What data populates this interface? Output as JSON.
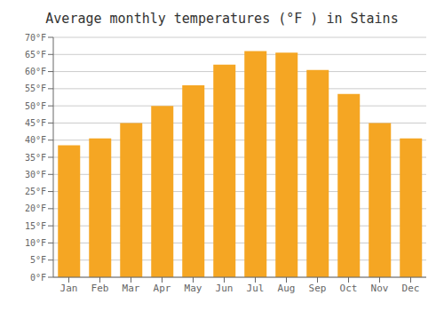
{
  "chart_data": {
    "type": "bar",
    "title": "Average monthly temperatures (°F ) in Stains",
    "categories": [
      "Jan",
      "Feb",
      "Mar",
      "Apr",
      "May",
      "Jun",
      "Jul",
      "Aug",
      "Sep",
      "Oct",
      "Nov",
      "Dec"
    ],
    "values": [
      38.5,
      40.5,
      45.0,
      50.0,
      56.0,
      62.0,
      66.0,
      65.5,
      60.5,
      53.5,
      45.0,
      40.5
    ],
    "color": "#F5A623",
    "ylim": [
      0,
      70
    ],
    "yticks": [
      {
        "value": 0,
        "label": "0°F"
      },
      {
        "value": 5,
        "label": "5°F"
      },
      {
        "value": 10,
        "label": "10°F"
      },
      {
        "value": 15,
        "label": "15°F"
      },
      {
        "value": 20,
        "label": "20°F"
      },
      {
        "value": 25,
        "label": "25°F"
      },
      {
        "value": 30,
        "label": "30°F"
      },
      {
        "value": 35,
        "label": "35°F"
      },
      {
        "value": 40,
        "label": "40°F"
      },
      {
        "value": 45,
        "label": "45°F"
      },
      {
        "value": 50,
        "label": "50°F"
      },
      {
        "value": 55,
        "label": "55°F"
      },
      {
        "value": 60,
        "label": "60°F"
      },
      {
        "value": 65,
        "label": "65°F"
      },
      {
        "value": 70,
        "label": "70°F"
      }
    ],
    "grid": true
  }
}
